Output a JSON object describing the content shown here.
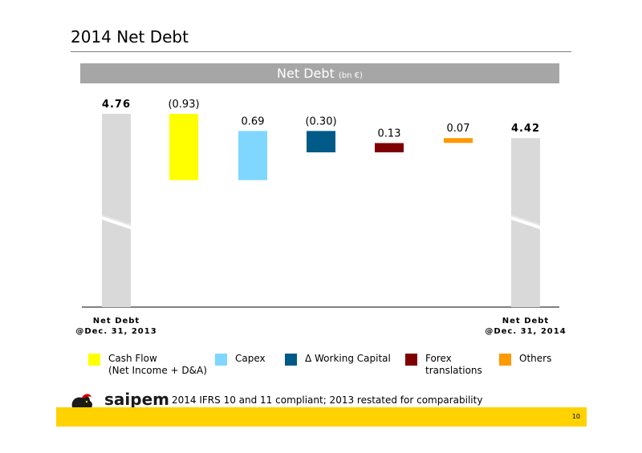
{
  "page": {
    "title": "2014 Net Debt",
    "page_number": "10",
    "footnote": "2014 IFRS 10 and 11 compliant; 2013 restated for comparability",
    "logo_text": "saipem"
  },
  "banner": {
    "title": "Net Debt",
    "unit": "(bn €)"
  },
  "chart_data": {
    "type": "bar",
    "subtype": "waterfall",
    "title": "Net Debt",
    "unit": "(bn €)",
    "axis_break": true,
    "categories": [
      "Net Debt\n@Dec. 31, 2013",
      "Cash Flow",
      "Capex",
      "Δ Working Capital",
      "Forex translations",
      "Others",
      "Net Debt\n@Dec. 31, 2014"
    ],
    "start_label": [
      "Net Debt",
      "@Dec. 31, 2013"
    ],
    "end_label": [
      "Net Debt",
      "@Dec. 31, 2014"
    ],
    "bars": [
      {
        "name": "Net Debt @Dec. 31, 2013",
        "kind": "total",
        "value": 4.76,
        "label": "4.76",
        "color": "#d9d9d9"
      },
      {
        "name": "Cash Flow (Net Income + D&A)",
        "kind": "delta",
        "value": -0.93,
        "label": "(0.93)",
        "color": "#ffff00"
      },
      {
        "name": "Capex",
        "kind": "delta",
        "value": 0.69,
        "label": "0.69",
        "color": "#7fd7ff"
      },
      {
        "name": "Δ Working Capital",
        "kind": "delta",
        "value": -0.3,
        "label": "(0.30)",
        "color": "#005a87"
      },
      {
        "name": "Forex translations",
        "kind": "delta",
        "value": 0.13,
        "label": "0.13",
        "color": "#7f0000"
      },
      {
        "name": "Others",
        "kind": "delta",
        "value": 0.07,
        "label": "0.07",
        "color": "#ff9900"
      },
      {
        "name": "Net Debt @Dec. 31, 2014",
        "kind": "total",
        "value": 4.42,
        "label": "4.42",
        "color": "#d9d9d9"
      }
    ],
    "legend": [
      {
        "label": [
          "Cash Flow",
          "(Net Income + D&A)"
        ],
        "color": "#ffff00"
      },
      {
        "label": [
          "Capex"
        ],
        "color": "#7fd7ff"
      },
      {
        "label": [
          "Δ Working Capital"
        ],
        "color": "#005a87"
      },
      {
        "label": [
          "Forex",
          "translations"
        ],
        "color": "#7f0000"
      },
      {
        "label": [
          "Others"
        ],
        "color": "#ff9900"
      }
    ],
    "legend_position": "bottom",
    "grid": false
  }
}
